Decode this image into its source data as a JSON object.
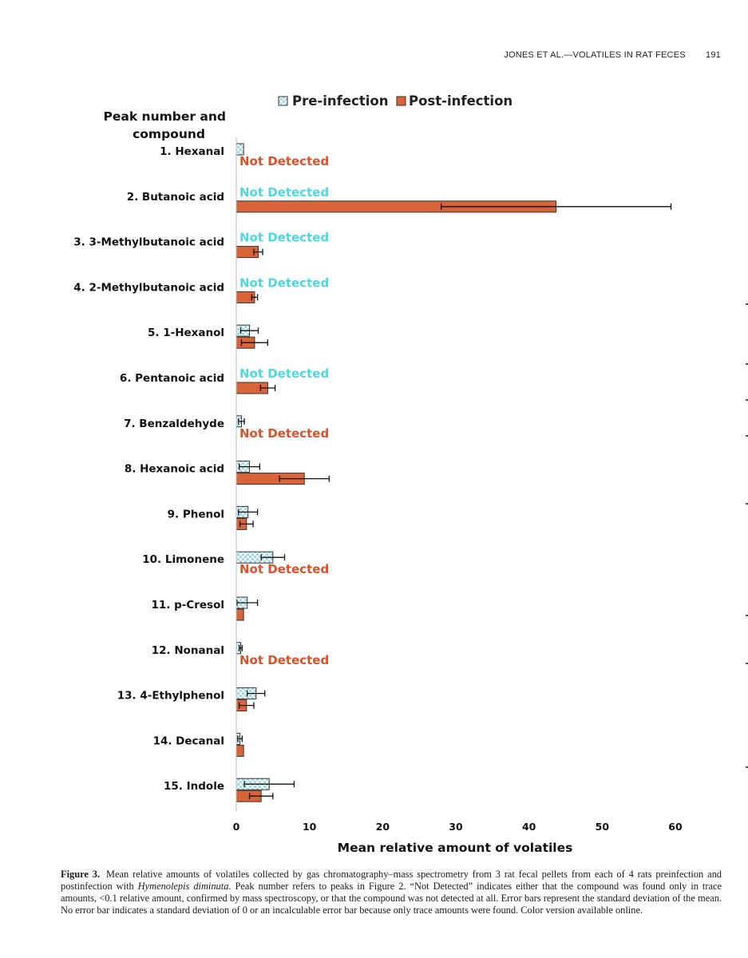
{
  "running_head": {
    "text": "JONES ET AL.—VOLATILES IN RAT FECES",
    "page": "191"
  },
  "caption": {
    "label": "Figure 3.",
    "text_before": "Mean relative amounts of volatiles collected by gas chromatography–mass spectrometry from 3 rat fecal pellets from each of 4 rats preinfection and postinfection with ",
    "species": "Hymenolepis diminuta",
    "text_after": ". Peak number refers to peaks in Figure 2. “Not Detected” indicates either that the compound was found only in trace amounts, <0.1 relative amount, confirmed by mass spectroscopy, or that the compound was not detected at all. Error bars represent the standard deviation of the mean. No error bar indicates a standard deviation of 0 or an incalculable error bar because only trace amounts were found. Color version available online."
  },
  "chart_data": {
    "type": "bar",
    "orientation": "horizontal",
    "category_axis_title": "Peak number and compound",
    "xlabel": "Mean relative amount of volatiles",
    "xlim": [
      0,
      60
    ],
    "xticks": [
      0,
      10,
      20,
      30,
      40,
      50,
      60
    ],
    "not_detected_label": "Not Detected",
    "legend_position": "top",
    "colors": {
      "pre": "#7fd3df",
      "pre_pattern": "#bfe9f0",
      "post": "#d9643a",
      "pre_text": "#4fd6e3",
      "post_text": "#d8532b",
      "outline": "#333333"
    },
    "categories": [
      "1. Hexanal",
      "2. Butanoic acid",
      "3. 3-Methylbutanoic acid",
      "4. 2-Methylbutanoic acid",
      "5. 1-Hexanol",
      "6. Pentanoic acid",
      "7. Benzaldehyde",
      "8. Hexanoic acid",
      "9. Phenol",
      "10. Limonene",
      "11. p-Cresol",
      "12. Nonanal",
      "13. 4-Ethylphenol",
      "14. Decanal",
      "15. Indole"
    ],
    "series": [
      {
        "name": "Pre-infection",
        "values": [
          1.0,
          null,
          null,
          null,
          1.8,
          null,
          0.7,
          1.8,
          1.6,
          5.0,
          1.5,
          0.6,
          2.7,
          0.5,
          4.5
        ],
        "error": [
          0,
          null,
          null,
          null,
          1.2,
          null,
          0.4,
          1.4,
          1.3,
          1.6,
          1.4,
          0.2,
          1.2,
          0.3,
          3.4
        ]
      },
      {
        "name": "Post-infection",
        "values": [
          null,
          43.7,
          3.0,
          2.5,
          2.5,
          4.3,
          null,
          9.3,
          1.4,
          null,
          1.0,
          null,
          1.4,
          1.0,
          3.4
        ],
        "error": [
          null,
          15.7,
          0.6,
          0.4,
          1.8,
          1.0,
          null,
          3.4,
          0.9,
          null,
          0,
          null,
          1.0,
          0,
          1.6
        ]
      }
    ]
  }
}
